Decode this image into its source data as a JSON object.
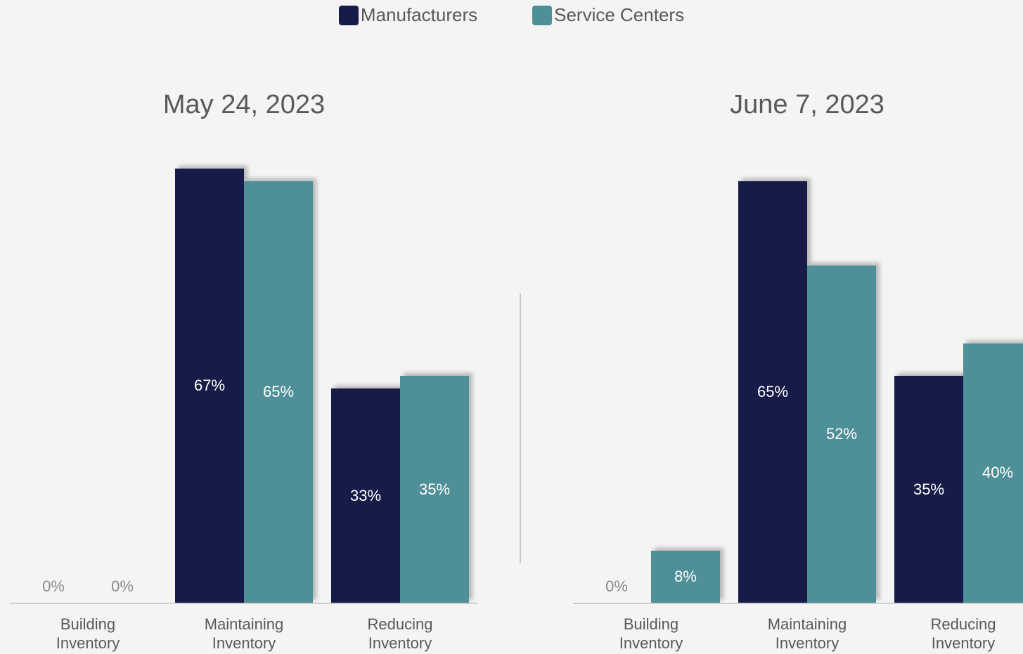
{
  "chart_data": [
    {
      "type": "bar",
      "title": "May 24, 2023",
      "categories": [
        "Building Inventory",
        "Maintaining Inventory",
        "Reducing Inventory"
      ],
      "series": [
        {
          "name": "Manufacturers",
          "color": "#161b47",
          "values": [
            0,
            67,
            33
          ],
          "value_labels": [
            "0%",
            "67%",
            "33%"
          ]
        },
        {
          "name": "Service Centers",
          "color": "#4f8f97",
          "values": [
            0,
            65,
            35
          ],
          "value_labels": [
            "0%",
            "65%",
            "35%"
          ]
        }
      ],
      "ylim": [
        0,
        70
      ]
    },
    {
      "type": "bar",
      "title": "June 7, 2023",
      "categories": [
        "Building Inventory",
        "Maintaining Inventory",
        "Reducing Inventory"
      ],
      "series": [
        {
          "color": "#161b47",
          "values": [
            0,
            65,
            35
          ],
          "value_labels": [
            "0%",
            "65%",
            "35%"
          ]
        },
        {
          "color": "#4f8f97",
          "values": [
            8,
            52,
            40
          ],
          "value_labels": [
            "8%",
            "52%",
            "40%"
          ]
        }
      ],
      "ylim": [
        0,
        70
      ]
    }
  ]
}
